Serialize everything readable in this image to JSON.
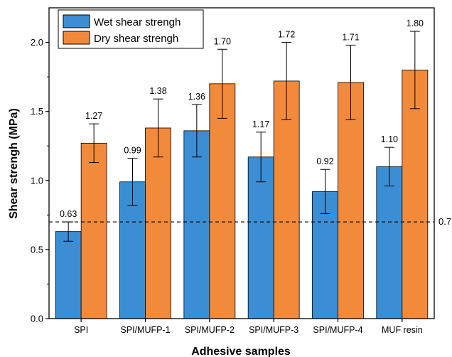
{
  "chart_data": {
    "type": "bar",
    "title": "",
    "xlabel": "Adhesive samples",
    "ylabel": "Shear strengh (MPa)",
    "ylim": [
      0,
      2.25
    ],
    "yticks": [
      "0.0",
      "0.5",
      "1.0",
      "1.5",
      "2.0"
    ],
    "categories": [
      "SPI",
      "SPI/MUFP-1",
      "SPI/MUFP-2",
      "SPI/MUFP-3",
      "SPI/MUFP-4",
      "MUF resin"
    ],
    "series": [
      {
        "name": "Wet shear strengh",
        "color": "#3b8ed4",
        "values": [
          0.63,
          0.99,
          1.36,
          1.17,
          0.92,
          1.1
        ],
        "labels": [
          "0.63",
          "0.99",
          "1.36",
          "1.17",
          "0.92",
          "1.10"
        ],
        "errors": [
          0.07,
          0.17,
          0.19,
          0.18,
          0.16,
          0.14
        ]
      },
      {
        "name": "Dry shear strengh",
        "color": "#f28a3c",
        "values": [
          1.27,
          1.38,
          1.7,
          1.72,
          1.71,
          1.8
        ],
        "labels": [
          "1.27",
          "1.38",
          "1.70",
          "1.72",
          "1.71",
          "1.80"
        ],
        "errors": [
          0.14,
          0.21,
          0.25,
          0.28,
          0.27,
          0.28
        ]
      }
    ],
    "reference_line": {
      "value": 0.7,
      "label": "0.7",
      "style": "dashed"
    },
    "legend": "top-left",
    "grid": false
  }
}
